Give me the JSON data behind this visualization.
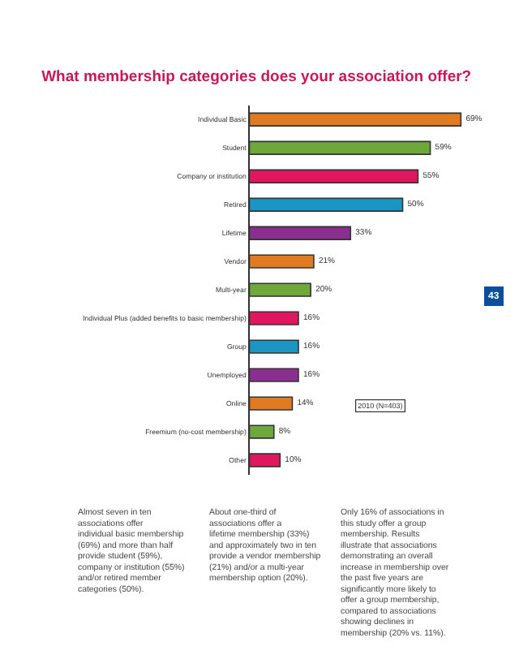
{
  "chart_data": {
    "type": "bar",
    "orientation": "horizontal",
    "title": "What membership categories does your association offer?",
    "categories": [
      "Individual Basic",
      "Student",
      "Company or institution",
      "Retired",
      "Lifetime",
      "Vendor",
      "Multi-year",
      "Individual Plus (added benefits to basic membership)",
      "Group",
      "Unemployed",
      "Online",
      "Freemium (no-cost membership)",
      "Other"
    ],
    "values": [
      69,
      59,
      55,
      50,
      33,
      21,
      20,
      16,
      16,
      16,
      14,
      8,
      10
    ],
    "colors": [
      "#e07b22",
      "#6fa83a",
      "#e0175f",
      "#1b95c4",
      "#8a2f8f",
      "#e07b22",
      "#6fa83a",
      "#e0175f",
      "#1b95c4",
      "#8a2f8f",
      "#e07b22",
      "#6fa83a",
      "#e0175f"
    ],
    "value_labels": [
      "69%",
      "59%",
      "55%",
      "50%",
      "33%",
      "21%",
      "20%",
      "16%",
      "16%",
      "16%",
      "14%",
      "8%",
      "10%"
    ],
    "annotations": [
      "2010 (N=403)",
      "43",
      "Almost seven in ten associations offer individual basic membership (69%) and more than half provide student (59%), company or institution (55%) and/or retired member categories (50%).",
      "About one-third of associations offer a lifetime membership (33%) and approximately two in ten provide a vendor membership (21%) and/or a multi-year membership option (20%).",
      "Only 16% of associations in this study offer a group membership. Results illustrate that associations demonstrating an overall increase in membership over the past five years are significantly more likely to offer a group membership, compared to associations showing declines in membership (20% vs. 11%)."
    ],
    "legend": false
  }
}
